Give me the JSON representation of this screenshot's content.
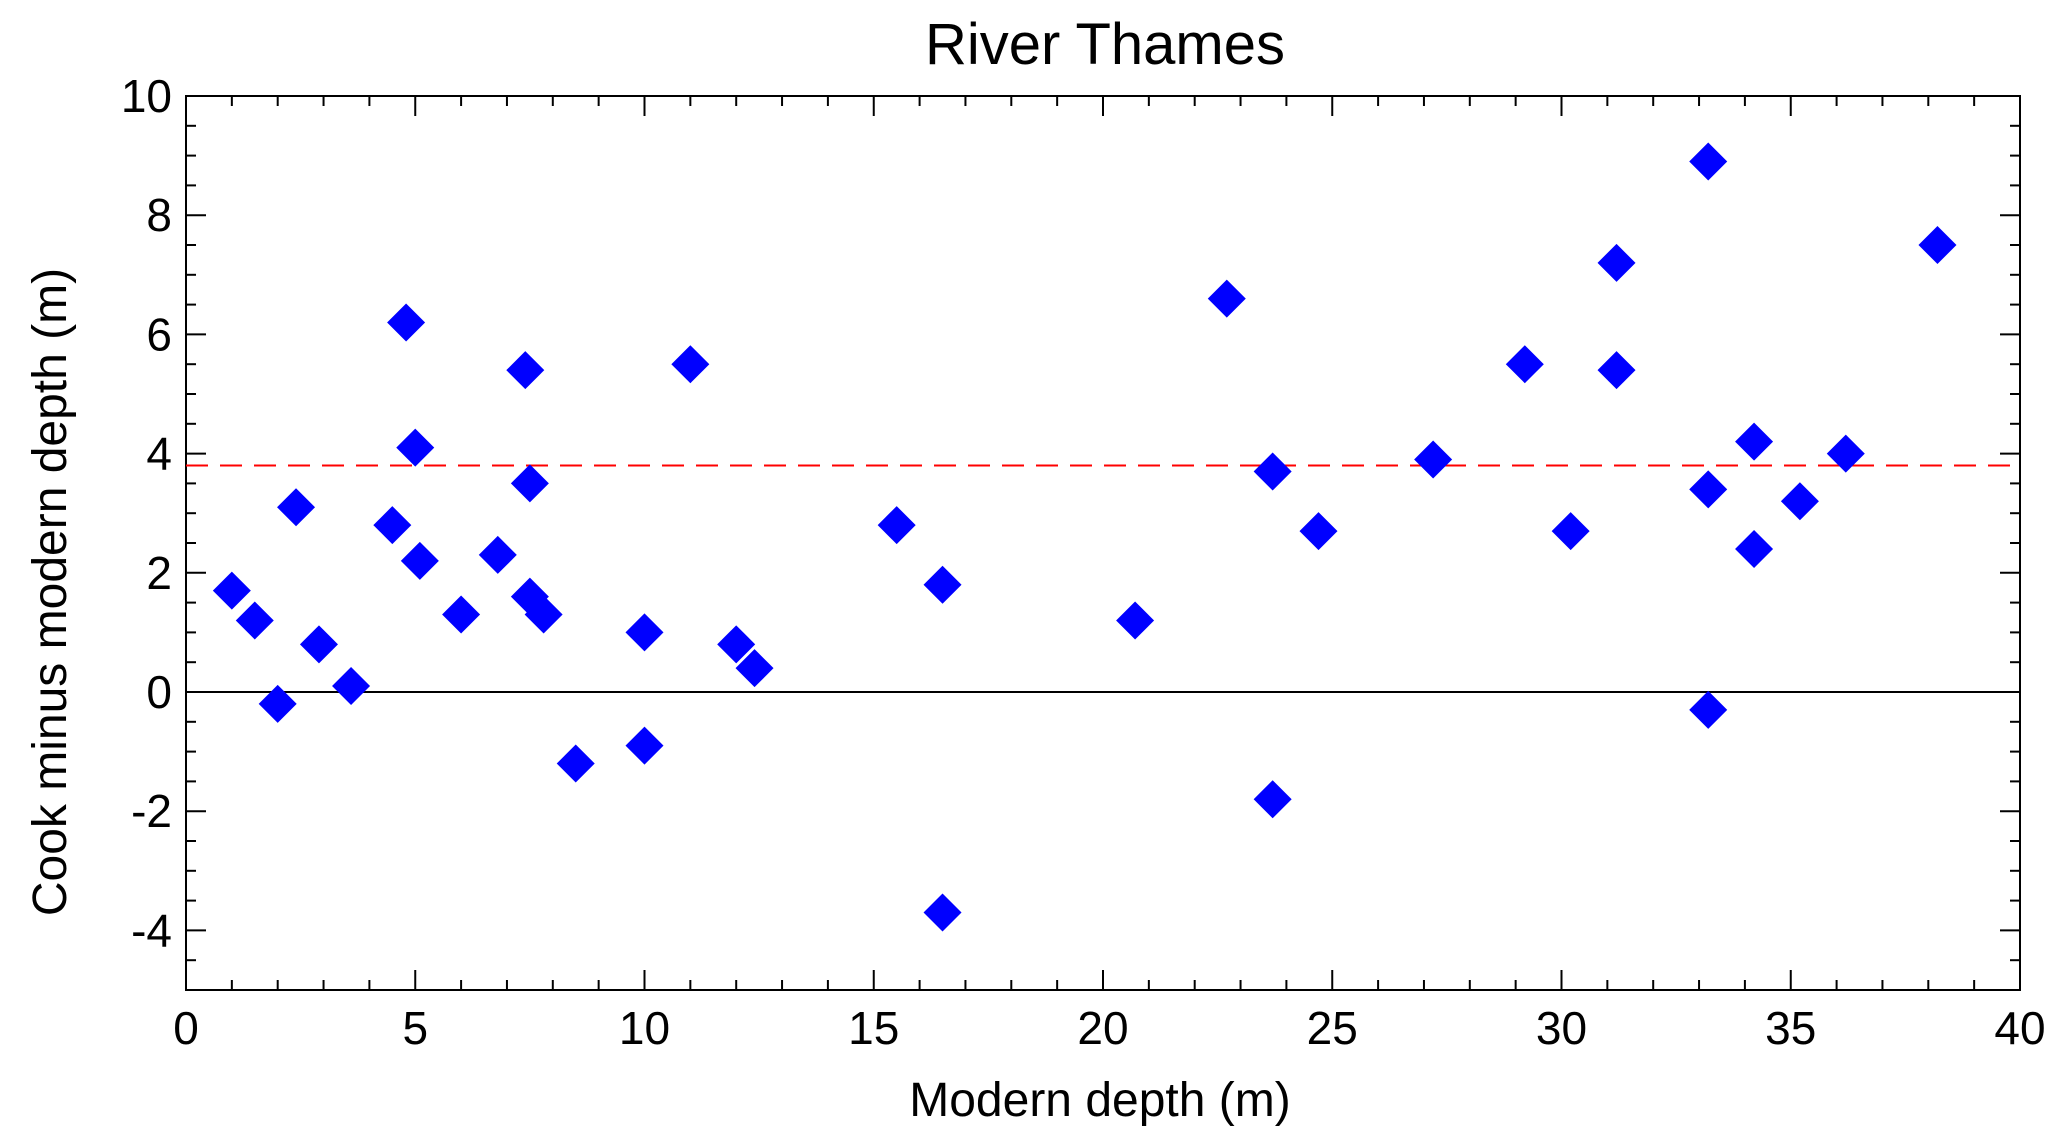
{
  "chart_data": {
    "type": "scatter",
    "title": "River Thames",
    "xlabel": "Modern depth (m)",
    "ylabel": "Cook minus modern depth (m)",
    "xlim": [
      0,
      40
    ],
    "ylim": [
      -5,
      10
    ],
    "xticks": [
      0,
      5,
      10,
      15,
      20,
      25,
      30,
      35,
      40
    ],
    "yticks": [
      -4,
      -2,
      0,
      2,
      4,
      6,
      8,
      10
    ],
    "marker": "diamond",
    "marker_color": "#0000ff",
    "reference_lines": [
      {
        "y": 0,
        "style": "solid",
        "color": "#000000"
      },
      {
        "y": 3.8,
        "style": "dashed",
        "color": "#ff0000"
      }
    ],
    "points": [
      {
        "x": 1.0,
        "y": 1.7
      },
      {
        "x": 1.5,
        "y": 1.2
      },
      {
        "x": 2.0,
        "y": -0.2
      },
      {
        "x": 2.4,
        "y": 3.1
      },
      {
        "x": 2.9,
        "y": 0.8
      },
      {
        "x": 3.6,
        "y": 0.1
      },
      {
        "x": 4.5,
        "y": 2.8
      },
      {
        "x": 4.8,
        "y": 6.2
      },
      {
        "x": 5.0,
        "y": 4.1
      },
      {
        "x": 5.1,
        "y": 2.2
      },
      {
        "x": 6.0,
        "y": 1.3
      },
      {
        "x": 6.8,
        "y": 2.3
      },
      {
        "x": 7.4,
        "y": 5.4
      },
      {
        "x": 7.5,
        "y": 3.5
      },
      {
        "x": 7.5,
        "y": 1.6
      },
      {
        "x": 7.8,
        "y": 1.3
      },
      {
        "x": 8.5,
        "y": -1.2
      },
      {
        "x": 10.0,
        "y": 1.0
      },
      {
        "x": 10.0,
        "y": -0.9
      },
      {
        "x": 11.0,
        "y": 5.5
      },
      {
        "x": 12.0,
        "y": 0.8
      },
      {
        "x": 12.4,
        "y": 0.4
      },
      {
        "x": 15.5,
        "y": 2.8
      },
      {
        "x": 16.5,
        "y": 1.8
      },
      {
        "x": 16.5,
        "y": -3.7
      },
      {
        "x": 20.7,
        "y": 1.2
      },
      {
        "x": 22.7,
        "y": 6.6
      },
      {
        "x": 23.7,
        "y": 3.7
      },
      {
        "x": 23.7,
        "y": -1.8
      },
      {
        "x": 24.7,
        "y": 2.7
      },
      {
        "x": 27.2,
        "y": 3.9
      },
      {
        "x": 29.2,
        "y": 5.5
      },
      {
        "x": 30.2,
        "y": 2.7
      },
      {
        "x": 31.2,
        "y": 7.2
      },
      {
        "x": 31.2,
        "y": 5.4
      },
      {
        "x": 33.2,
        "y": 8.9
      },
      {
        "x": 33.2,
        "y": 3.4
      },
      {
        "x": 33.2,
        "y": -0.3
      },
      {
        "x": 34.2,
        "y": 4.2
      },
      {
        "x": 34.2,
        "y": 2.4
      },
      {
        "x": 35.2,
        "y": 3.2
      },
      {
        "x": 36.2,
        "y": 4.0
      },
      {
        "x": 38.2,
        "y": 7.5
      }
    ]
  }
}
